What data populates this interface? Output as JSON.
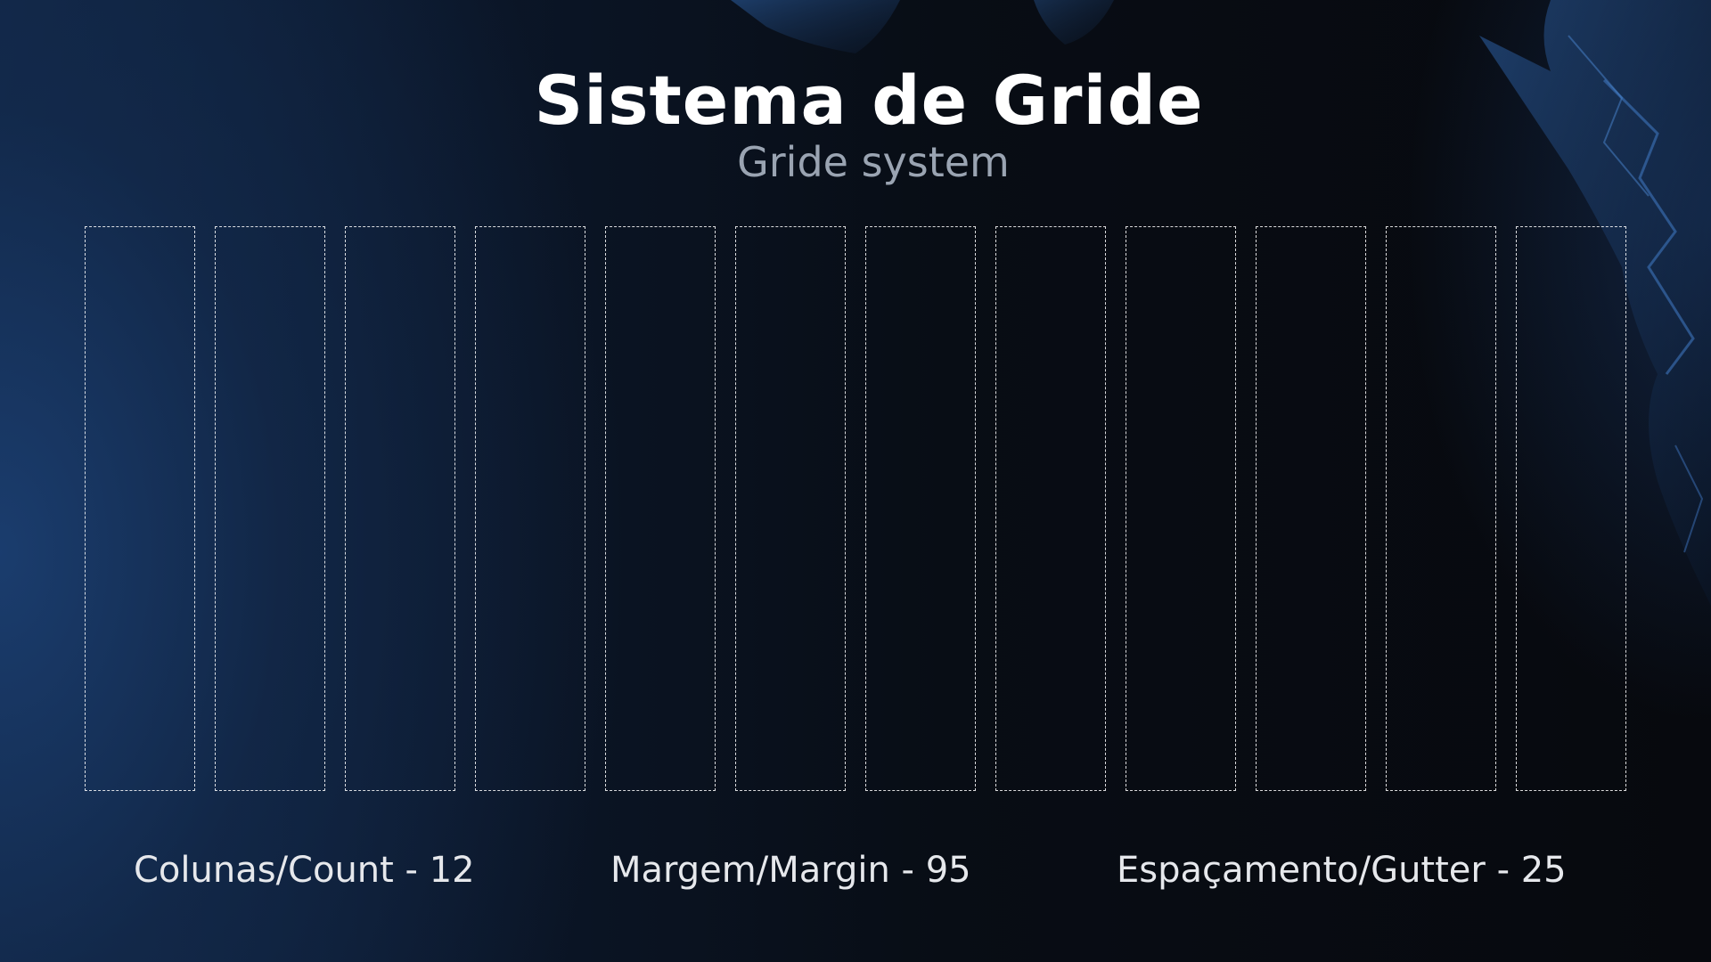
{
  "title": "Sistema de Gride",
  "subtitle": "Gride system",
  "grid": {
    "columns": 12
  },
  "specs": {
    "count": "Colunas/Count - 12",
    "margin": "Margem/Margin - 95",
    "gutter": "Espaçamento/Gutter - 25"
  },
  "colors": {
    "accent_blue": "#1b3e70",
    "background_dark": "#07090e",
    "grid_line": "#ffffff",
    "subtitle": "#9aa4b2"
  }
}
